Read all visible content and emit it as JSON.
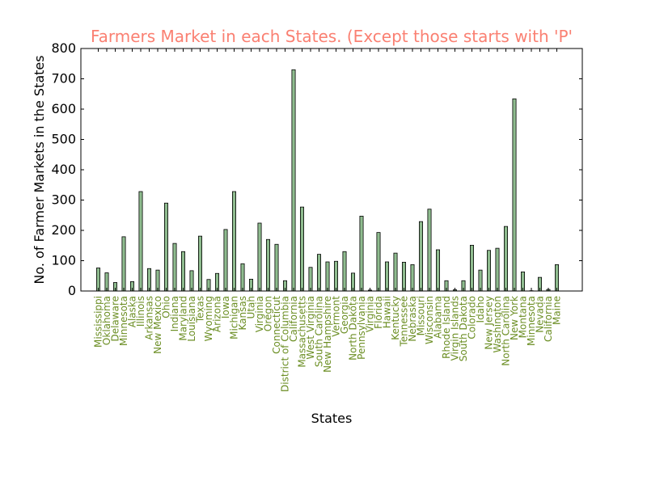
{
  "chart_data": {
    "type": "bar",
    "title": "Farmers Market in each States. (Except those starts with 'P'",
    "xlabel": "States",
    "ylabel": "No. of Farmer Markets in the States",
    "ylim": [
      0,
      800
    ],
    "yticks": [
      "0",
      "100",
      "200",
      "300",
      "400",
      "500",
      "600",
      "700",
      "800"
    ],
    "categories": [
      "Mississippi",
      "Oklahoma",
      "Delaware",
      "Minnesota",
      "Alaska",
      "Illinois",
      "Arkansas",
      "New Mexico",
      "Ohio",
      "Indiana",
      "Maryland",
      "Louisiana",
      "Texas",
      "Wyoming",
      "Arizona",
      "Iowa",
      "Michigan",
      "Kansas",
      "Utah",
      "Virginia",
      "Oregon",
      "Connecticut",
      "District of Columbia",
      "California",
      "Massachusetts",
      "West Virginia",
      "South Carolina",
      "New Hampshire",
      "Vermont",
      "Georgia",
      "North Dakota",
      "Pennsylvania",
      "Virginia",
      "Florida",
      "Hawaii",
      "Kentucky",
      "Tennessee",
      "Nebraska",
      "Missouri",
      "Wisconsin",
      "Alabama",
      "Rhode Island",
      "Virgin Islands",
      "South Dakota",
      "Colorado",
      "Idaho",
      "New Jersey",
      "Washington",
      "North Carolina",
      "New York",
      "Montana",
      "Minnesota",
      "Nevada",
      "California",
      "Maine"
    ],
    "values": [
      76,
      60,
      28,
      179,
      31,
      328,
      74,
      69,
      290,
      157,
      130,
      67,
      181,
      38,
      58,
      203,
      328,
      90,
      39,
      224,
      170,
      154,
      34,
      730,
      277,
      78,
      121,
      96,
      98,
      130,
      59,
      247,
      3,
      193,
      96,
      125,
      95,
      87,
      229,
      270,
      136,
      34,
      4,
      34,
      151,
      69,
      134,
      141,
      213,
      634,
      63,
      1,
      45,
      5,
      87
    ],
    "bar_color": "#8fbc8f",
    "tick_label_color": "#6b8e23",
    "title_color": "#fa8072",
    "grid": false
  }
}
